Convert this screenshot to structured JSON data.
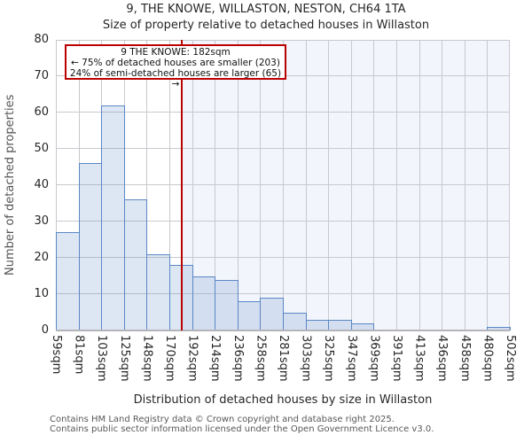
{
  "header": {
    "title": "9, THE KNOWE, WILLASTON, NESTON, CH64 1TA",
    "subtitle": "Size of property relative to detached houses in Willaston"
  },
  "chart_data": {
    "type": "bar",
    "title": "9, THE KNOWE, WILLASTON, NESTON, CH64 1TA",
    "subtitle": "Size of property relative to detached houses in Willaston",
    "xlabel": "Distribution of detached houses by size in Willaston",
    "ylabel": "Number of detached properties",
    "ylim": [
      0,
      80
    ],
    "yticks": [
      0,
      10,
      20,
      30,
      40,
      50,
      60,
      70,
      80
    ],
    "grid": true,
    "tick_labels": [
      "59sqm",
      "81sqm",
      "103sqm",
      "125sqm",
      "148sqm",
      "170sqm",
      "192sqm",
      "214sqm",
      "236sqm",
      "258sqm",
      "281sqm",
      "303sqm",
      "325sqm",
      "347sqm",
      "369sqm",
      "391sqm",
      "413sqm",
      "436sqm",
      "458sqm",
      "480sqm",
      "502sqm"
    ],
    "bin_edges_sqm": [
      59,
      81,
      103,
      125,
      148,
      170,
      192,
      214,
      236,
      258,
      281,
      303,
      325,
      347,
      369,
      391,
      413,
      436,
      458,
      480,
      502
    ],
    "values": [
      27,
      46,
      62,
      36,
      21,
      18,
      15,
      14,
      8,
      9,
      5,
      3,
      3,
      2,
      0,
      0,
      0,
      0,
      0,
      1
    ],
    "marker": {
      "value_sqm": 182,
      "label": "9 THE KNOWE: 182sqm"
    },
    "colors": {
      "bar_fill": "rgba(101,143,202,0.22)",
      "bar_edge": "#5b87c5",
      "marker_line": "#bb0000",
      "shade_right_of_marker": "#f2f5fc",
      "gridline": "#c9c9ce"
    }
  },
  "annotation": {
    "line1": "9 THE KNOWE: 182sqm",
    "line2": "← 75% of detached houses are smaller (203)",
    "line3": "24% of semi-detached houses are larger (65) →"
  },
  "footer": {
    "line1": "Contains HM Land Registry data © Crown copyright and database right 2025.",
    "line2": "Contains public sector information licensed under the Open Government Licence v3.0."
  }
}
